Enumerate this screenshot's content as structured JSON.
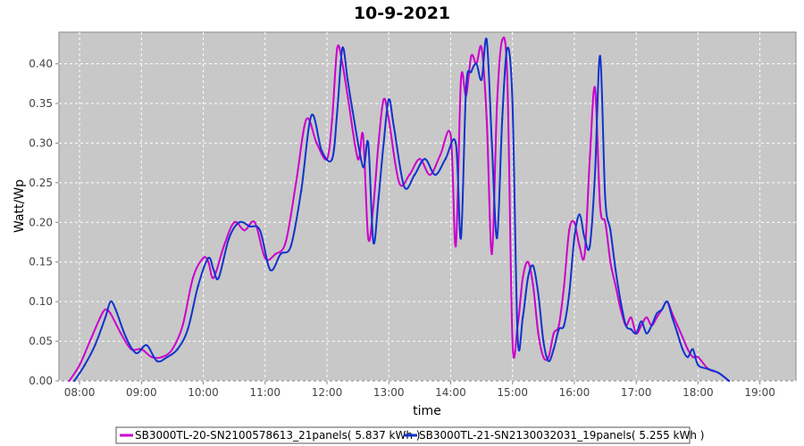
{
  "chart_data": {
    "type": "line",
    "title": "10-9-2021",
    "xlabel": "time",
    "ylabel": "Watt/Wp",
    "xlim": [
      "07:40",
      "19:35"
    ],
    "ylim": [
      0,
      0.44
    ],
    "x_ticks": [
      "08:00",
      "09:00",
      "10:00",
      "11:00",
      "12:00",
      "13:00",
      "14:00",
      "15:00",
      "16:00",
      "17:00",
      "18:00",
      "19:00"
    ],
    "y_ticks": [
      "0.00",
      "0.05",
      "0.10",
      "0.15",
      "0.20",
      "0.25",
      "0.30",
      "0.35",
      "0.40"
    ],
    "grid": true,
    "legend_position": "bottom",
    "series": [
      {
        "name": "SB3000TL-20-SN2100578613_21panels( 5.837 kWh )",
        "color": "#cc00cc",
        "points": [
          [
            "07:50",
            0.0
          ],
          [
            "08:00",
            0.02
          ],
          [
            "08:10",
            0.05
          ],
          [
            "08:20",
            0.08
          ],
          [
            "08:25",
            0.09
          ],
          [
            "08:30",
            0.085
          ],
          [
            "08:40",
            0.06
          ],
          [
            "08:50",
            0.04
          ],
          [
            "09:00",
            0.04
          ],
          [
            "09:10",
            0.03
          ],
          [
            "09:20",
            0.03
          ],
          [
            "09:30",
            0.04
          ],
          [
            "09:40",
            0.07
          ],
          [
            "09:50",
            0.13
          ],
          [
            "10:00",
            0.155
          ],
          [
            "10:05",
            0.15
          ],
          [
            "10:10",
            0.13
          ],
          [
            "10:20",
            0.17
          ],
          [
            "10:30",
            0.2
          ],
          [
            "10:40",
            0.19
          ],
          [
            "10:50",
            0.2
          ],
          [
            "11:00",
            0.155
          ],
          [
            "11:10",
            0.16
          ],
          [
            "11:20",
            0.175
          ],
          [
            "11:30",
            0.25
          ],
          [
            "11:40",
            0.33
          ],
          [
            "11:50",
            0.3
          ],
          [
            "12:00",
            0.28
          ],
          [
            "12:05",
            0.33
          ],
          [
            "12:10",
            0.42
          ],
          [
            "12:15",
            0.4
          ],
          [
            "12:20",
            0.36
          ],
          [
            "12:30",
            0.28
          ],
          [
            "12:35",
            0.31
          ],
          [
            "12:40",
            0.18
          ],
          [
            "12:45",
            0.22
          ],
          [
            "12:50",
            0.3
          ],
          [
            "12:55",
            0.355
          ],
          [
            "13:00",
            0.33
          ],
          [
            "13:10",
            0.25
          ],
          [
            "13:20",
            0.26
          ],
          [
            "13:30",
            0.28
          ],
          [
            "13:40",
            0.26
          ],
          [
            "13:50",
            0.285
          ],
          [
            "14:00",
            0.31
          ],
          [
            "14:05",
            0.17
          ],
          [
            "14:10",
            0.38
          ],
          [
            "14:15",
            0.36
          ],
          [
            "14:20",
            0.41
          ],
          [
            "14:25",
            0.4
          ],
          [
            "14:30",
            0.42
          ],
          [
            "14:35",
            0.33
          ],
          [
            "14:40",
            0.16
          ],
          [
            "14:45",
            0.35
          ],
          [
            "14:50",
            0.43
          ],
          [
            "14:55",
            0.38
          ],
          [
            "15:00",
            0.05
          ],
          [
            "15:05",
            0.07
          ],
          [
            "15:10",
            0.13
          ],
          [
            "15:15",
            0.15
          ],
          [
            "15:20",
            0.12
          ],
          [
            "15:25",
            0.06
          ],
          [
            "15:30",
            0.03
          ],
          [
            "15:35",
            0.03
          ],
          [
            "15:40",
            0.06
          ],
          [
            "15:45",
            0.07
          ],
          [
            "15:50",
            0.12
          ],
          [
            "15:55",
            0.19
          ],
          [
            "16:00",
            0.2
          ],
          [
            "16:05",
            0.17
          ],
          [
            "16:10",
            0.16
          ],
          [
            "16:15",
            0.28
          ],
          [
            "16:20",
            0.37
          ],
          [
            "16:25",
            0.22
          ],
          [
            "16:30",
            0.2
          ],
          [
            "16:35",
            0.15
          ],
          [
            "16:40",
            0.12
          ],
          [
            "16:45",
            0.09
          ],
          [
            "16:50",
            0.07
          ],
          [
            "16:55",
            0.08
          ],
          [
            "17:00",
            0.06
          ],
          [
            "17:05",
            0.07
          ],
          [
            "17:10",
            0.08
          ],
          [
            "17:15",
            0.07
          ],
          [
            "17:20",
            0.08
          ],
          [
            "17:25",
            0.09
          ],
          [
            "17:30",
            0.1
          ],
          [
            "17:35",
            0.085
          ],
          [
            "17:40",
            0.07
          ],
          [
            "17:45",
            0.055
          ],
          [
            "17:50",
            0.04
          ],
          [
            "17:55",
            0.03
          ],
          [
            "18:00",
            0.03
          ],
          [
            "18:10",
            0.015
          ],
          [
            "18:20",
            0.01
          ],
          [
            "18:30",
            0.0
          ]
        ]
      },
      {
        "name": "SB3000TL-21-SN2130032031_19panels( 5.255 kWh )",
        "color": "#1133cc",
        "points": [
          [
            "07:55",
            0.0
          ],
          [
            "08:05",
            0.02
          ],
          [
            "08:15",
            0.045
          ],
          [
            "08:25",
            0.08
          ],
          [
            "08:30",
            0.1
          ],
          [
            "08:35",
            0.09
          ],
          [
            "08:45",
            0.055
          ],
          [
            "08:55",
            0.035
          ],
          [
            "09:05",
            0.045
          ],
          [
            "09:15",
            0.025
          ],
          [
            "09:25",
            0.03
          ],
          [
            "09:35",
            0.04
          ],
          [
            "09:45",
            0.065
          ],
          [
            "09:55",
            0.12
          ],
          [
            "10:05",
            0.155
          ],
          [
            "10:10",
            0.14
          ],
          [
            "10:15",
            0.13
          ],
          [
            "10:25",
            0.18
          ],
          [
            "10:35",
            0.2
          ],
          [
            "10:45",
            0.195
          ],
          [
            "10:55",
            0.19
          ],
          [
            "11:05",
            0.14
          ],
          [
            "11:15",
            0.16
          ],
          [
            "11:25",
            0.17
          ],
          [
            "11:35",
            0.24
          ],
          [
            "11:45",
            0.335
          ],
          [
            "11:55",
            0.29
          ],
          [
            "12:05",
            0.28
          ],
          [
            "12:10",
            0.34
          ],
          [
            "12:15",
            0.42
          ],
          [
            "12:20",
            0.38
          ],
          [
            "12:25",
            0.34
          ],
          [
            "12:35",
            0.27
          ],
          [
            "12:40",
            0.3
          ],
          [
            "12:45",
            0.175
          ],
          [
            "12:50",
            0.23
          ],
          [
            "12:55",
            0.3
          ],
          [
            "13:00",
            0.355
          ],
          [
            "13:05",
            0.32
          ],
          [
            "13:15",
            0.245
          ],
          [
            "13:25",
            0.26
          ],
          [
            "13:35",
            0.28
          ],
          [
            "13:45",
            0.26
          ],
          [
            "13:55",
            0.28
          ],
          [
            "14:05",
            0.3
          ],
          [
            "14:10",
            0.18
          ],
          [
            "14:15",
            0.37
          ],
          [
            "14:20",
            0.39
          ],
          [
            "14:25",
            0.4
          ],
          [
            "14:30",
            0.38
          ],
          [
            "14:35",
            0.43
          ],
          [
            "14:40",
            0.3
          ],
          [
            "14:45",
            0.18
          ],
          [
            "14:50",
            0.33
          ],
          [
            "14:55",
            0.42
          ],
          [
            "15:00",
            0.35
          ],
          [
            "15:05",
            0.055
          ],
          [
            "15:10",
            0.08
          ],
          [
            "15:15",
            0.13
          ],
          [
            "15:20",
            0.145
          ],
          [
            "15:25",
            0.11
          ],
          [
            "15:30",
            0.05
          ],
          [
            "15:35",
            0.025
          ],
          [
            "15:40",
            0.04
          ],
          [
            "15:45",
            0.065
          ],
          [
            "15:50",
            0.07
          ],
          [
            "15:55",
            0.11
          ],
          [
            "16:00",
            0.18
          ],
          [
            "16:05",
            0.21
          ],
          [
            "16:10",
            0.18
          ],
          [
            "16:15",
            0.17
          ],
          [
            "16:20",
            0.26
          ],
          [
            "16:25",
            0.41
          ],
          [
            "16:30",
            0.23
          ],
          [
            "16:35",
            0.19
          ],
          [
            "16:40",
            0.14
          ],
          [
            "16:45",
            0.1
          ],
          [
            "16:50",
            0.07
          ],
          [
            "16:55",
            0.065
          ],
          [
            "17:00",
            0.06
          ],
          [
            "17:05",
            0.075
          ],
          [
            "17:10",
            0.06
          ],
          [
            "17:15",
            0.07
          ],
          [
            "17:20",
            0.085
          ],
          [
            "17:25",
            0.09
          ],
          [
            "17:30",
            0.1
          ],
          [
            "17:35",
            0.08
          ],
          [
            "17:40",
            0.06
          ],
          [
            "17:45",
            0.04
          ],
          [
            "17:50",
            0.03
          ],
          [
            "17:55",
            0.04
          ],
          [
            "18:00",
            0.02
          ],
          [
            "18:10",
            0.015
          ],
          [
            "18:20",
            0.01
          ],
          [
            "18:30",
            0.0
          ]
        ]
      }
    ]
  }
}
